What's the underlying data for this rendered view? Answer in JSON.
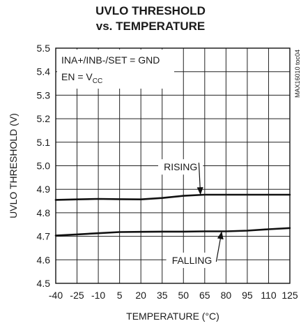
{
  "chart_data": {
    "type": "line",
    "title_line1": "UVLO THRESHOLD",
    "title_line2": "vs. TEMPERATURE",
    "xlabel": "TEMPERATURE (°C)",
    "ylabel": "UVLO THRESHOLD (V)",
    "xlim": [
      -40,
      125
    ],
    "ylim": [
      4.5,
      5.5
    ],
    "xticks": [
      -40,
      -25,
      -10,
      5,
      20,
      35,
      50,
      65,
      80,
      95,
      110,
      125
    ],
    "yticks": [
      "4.5",
      "4.6",
      "4.7",
      "4.8",
      "4.9",
      "5.0",
      "5.1",
      "5.2",
      "5.3",
      "5.4",
      "5.5"
    ],
    "grid": true,
    "conditions": {
      "line1": "INA+/INB-/SET = GND",
      "line2_main": "EN = V",
      "line2_sub": "CC"
    },
    "figure_id": "MAX16010 toc04",
    "series": [
      {
        "name": "RISING",
        "x": [
          -40,
          -25,
          -10,
          5,
          20,
          35,
          50,
          65,
          80,
          95,
          110,
          125
        ],
        "y": [
          4.855,
          4.857,
          4.859,
          4.858,
          4.857,
          4.863,
          4.872,
          4.877,
          4.877,
          4.877,
          4.877,
          4.877
        ]
      },
      {
        "name": "FALLING",
        "x": [
          -40,
          -25,
          -10,
          5,
          20,
          35,
          50,
          65,
          80,
          95,
          110,
          125
        ],
        "y": [
          4.703,
          4.708,
          4.713,
          4.718,
          4.719,
          4.72,
          4.72,
          4.721,
          4.721,
          4.724,
          4.73,
          4.735
        ]
      }
    ],
    "annotations": [
      {
        "text": "RISING",
        "x": 48,
        "y": 4.995,
        "arrow_to": [
          62,
          4.876
        ]
      },
      {
        "text": "FALLING",
        "x": 56,
        "y": 4.598,
        "arrow_to": [
          77,
          4.721
        ]
      }
    ]
  }
}
